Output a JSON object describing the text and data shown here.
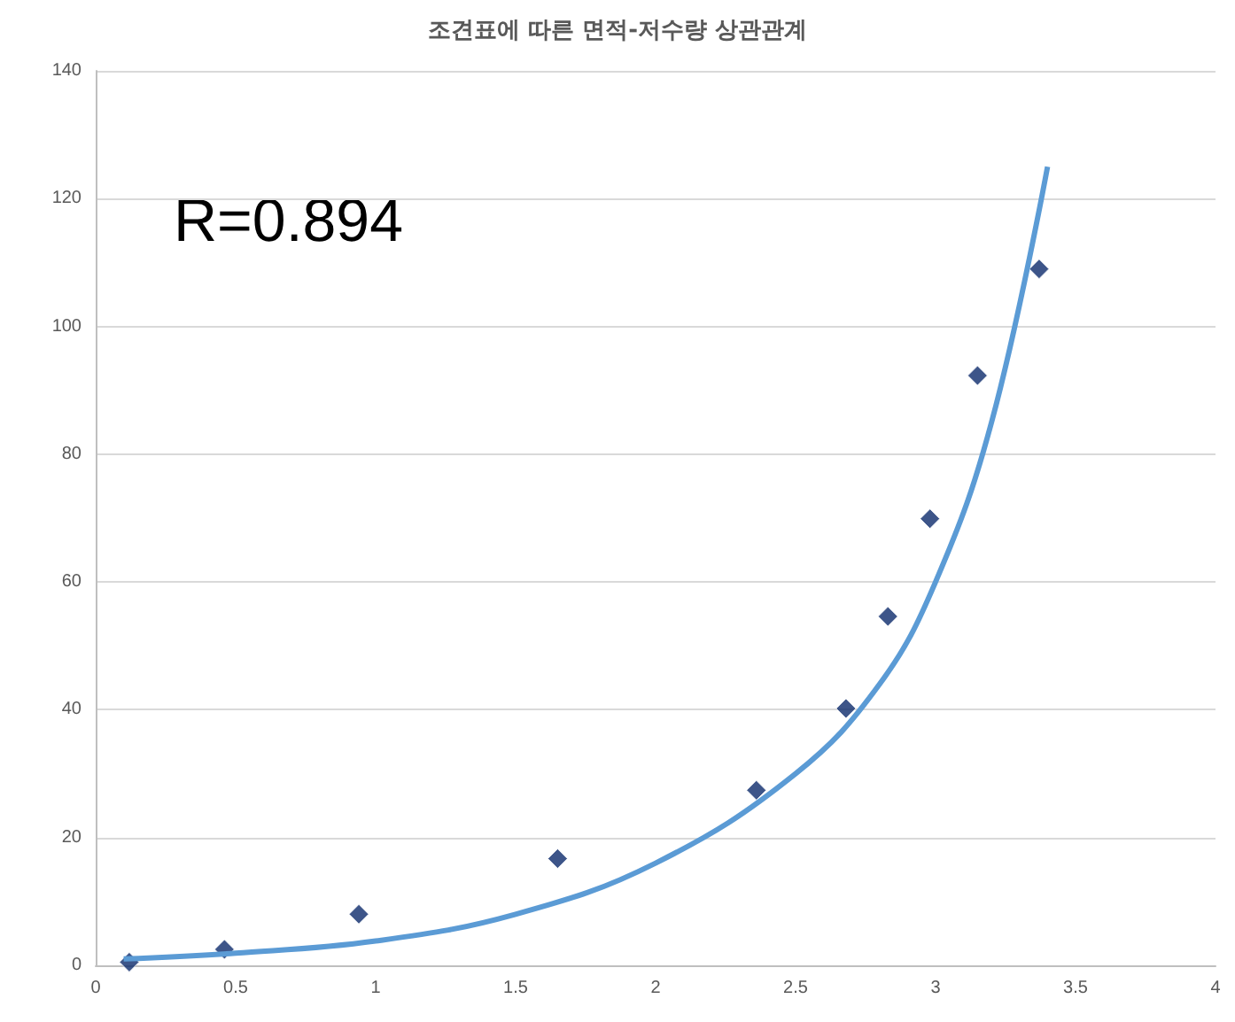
{
  "chart_data": {
    "type": "scatter",
    "title": "조견표에 따른 면적-저수량 상관관계",
    "annotations": [
      "R=0.894"
    ],
    "xlim": [
      0,
      4
    ],
    "xticks": [
      0,
      0.5,
      1,
      1.5,
      2,
      2.5,
      3,
      3.5,
      4
    ],
    "ylim": [
      0,
      140
    ],
    "yticks": [
      0,
      20,
      40,
      60,
      80,
      100,
      120,
      140
    ],
    "grid": "y",
    "series": [
      {
        "color": "#0d2a6b",
        "marker": "diamond",
        "x": [
          0.12,
          0.46,
          0.94,
          1.65,
          2.36,
          2.68,
          2.83,
          2.98,
          3.15,
          3.37
        ],
        "values": [
          0.5,
          2.5,
          8,
          16.7,
          27.4,
          40.2,
          54.6,
          69.9,
          92.3,
          109
        ]
      },
      {
        "type": "line",
        "color": "#5b9bd5",
        "marker": "none",
        "x": [
          0.1,
          0.5,
          1,
          1.5,
          2,
          2.5,
          2.8,
          3,
          3.2,
          3.4
        ],
        "values": [
          1,
          1.9,
          3.8,
          8,
          16,
          30,
          44,
          60,
          85,
          125
        ]
      }
    ]
  }
}
